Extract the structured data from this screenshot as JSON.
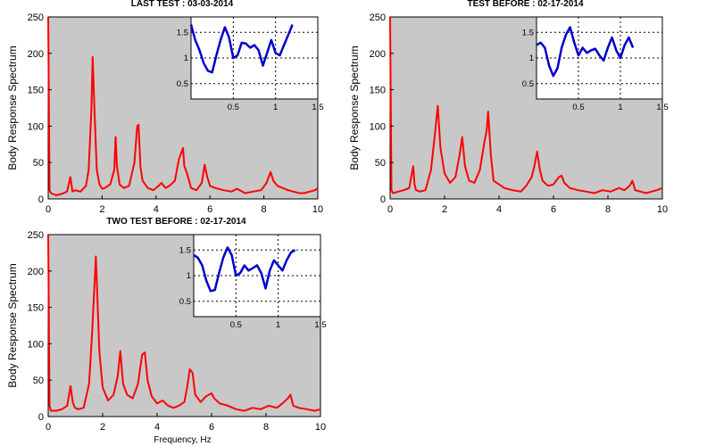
{
  "chart_data": [
    {
      "type": "line",
      "title": "LAST TEST : 03-03-2014",
      "ylabel": "Body Response Spectrum",
      "xlabel": "",
      "xlim": [
        0,
        10
      ],
      "ylim": [
        0,
        250
      ],
      "xticks": [
        0,
        2,
        4,
        6,
        8,
        10
      ],
      "yticks": [
        0,
        50,
        100,
        150,
        200,
        250
      ],
      "background": "#c8c8c8",
      "line_color": "#ff0000",
      "series": [
        {
          "x": [
            0,
            0.05,
            0.1,
            0.3,
            0.5,
            0.7,
            0.82,
            0.9,
            1.0,
            1.2,
            1.4,
            1.5,
            1.6,
            1.65,
            1.72,
            1.8,
            1.9,
            2.0,
            2.1,
            2.3,
            2.45,
            2.5,
            2.55,
            2.65,
            2.8,
            3.0,
            3.2,
            3.3,
            3.35,
            3.42,
            3.5,
            3.7,
            3.9,
            4.1,
            4.2,
            4.35,
            4.5,
            4.7,
            4.85,
            4.95,
            5.0,
            5.05,
            5.15,
            5.3,
            5.5,
            5.7,
            5.8,
            5.9,
            6.0,
            6.2,
            6.5,
            6.8,
            7.0,
            7.3,
            7.6,
            7.9,
            8.1,
            8.25,
            8.35,
            8.5,
            8.7,
            8.9,
            9.1,
            9.3,
            9.5,
            9.7,
            9.9,
            10.0
          ],
          "y": [
            250,
            12,
            8,
            5,
            7,
            10,
            30,
            10,
            12,
            10,
            18,
            40,
            120,
            195,
            120,
            40,
            20,
            14,
            15,
            20,
            40,
            85,
            45,
            20,
            15,
            18,
            50,
            100,
            102,
            45,
            25,
            15,
            12,
            18,
            22,
            15,
            18,
            25,
            55,
            65,
            70,
            45,
            35,
            15,
            12,
            22,
            47,
            30,
            18,
            15,
            12,
            10,
            14,
            8,
            10,
            12,
            22,
            37,
            25,
            18,
            15,
            12,
            10,
            8,
            8,
            10,
            12,
            15
          ]
        }
      ],
      "inset": {
        "xlim": [
          0,
          1.5
        ],
        "ylim": [
          0.2,
          1.8
        ],
        "xticks": [
          0.5,
          1,
          1.5
        ],
        "xtick_labels": [
          "0.5",
          "1",
          "1.5"
        ],
        "yticks": [
          0.5,
          1,
          1.5
        ],
        "ytick_labels": [
          "0.5",
          "1",
          "1.5"
        ],
        "line_color": "#0000cc",
        "x": [
          0,
          0.05,
          0.1,
          0.15,
          0.2,
          0.25,
          0.3,
          0.35,
          0.4,
          0.45,
          0.5,
          0.55,
          0.6,
          0.65,
          0.7,
          0.75,
          0.8,
          0.85,
          0.9,
          0.95,
          1.0,
          1.05,
          1.1,
          1.15,
          1.2
        ],
        "y": [
          1.65,
          1.35,
          1.15,
          0.9,
          0.75,
          0.72,
          1.05,
          1.35,
          1.6,
          1.4,
          1.0,
          1.05,
          1.3,
          1.28,
          1.2,
          1.25,
          1.15,
          0.85,
          1.1,
          1.35,
          1.1,
          1.05,
          1.25,
          1.45,
          1.65
        ]
      }
    },
    {
      "type": "line",
      "title": "TEST BEFORE : 02-17-2014",
      "ylabel": "Body Response Spectrum",
      "xlabel": "",
      "xlim": [
        0,
        10
      ],
      "ylim": [
        0,
        250
      ],
      "xticks": [
        0,
        2,
        4,
        6,
        8,
        10
      ],
      "yticks": [
        0,
        50,
        100,
        150,
        200,
        250
      ],
      "background": "#c8c8c8",
      "line_color": "#ff0000",
      "series": [
        {
          "x": [
            0,
            0.05,
            0.1,
            0.3,
            0.5,
            0.7,
            0.85,
            0.9,
            0.95,
            1.1,
            1.3,
            1.5,
            1.65,
            1.75,
            1.85,
            2.0,
            2.2,
            2.4,
            2.55,
            2.65,
            2.75,
            2.9,
            3.1,
            3.3,
            3.45,
            3.55,
            3.6,
            3.7,
            3.8,
            4.0,
            4.2,
            4.5,
            4.8,
            5.0,
            5.2,
            5.3,
            5.4,
            5.5,
            5.6,
            5.8,
            6.0,
            6.2,
            6.3,
            6.4,
            6.6,
            6.9,
            7.2,
            7.5,
            7.8,
            8.1,
            8.4,
            8.6,
            8.8,
            8.9,
            9.0,
            9.2,
            9.4,
            9.6,
            9.8,
            10.0
          ],
          "y": [
            250,
            12,
            8,
            10,
            12,
            15,
            45,
            20,
            12,
            10,
            12,
            40,
            90,
            128,
            70,
            35,
            22,
            30,
            60,
            85,
            45,
            25,
            22,
            40,
            75,
            95,
            120,
            60,
            25,
            20,
            15,
            12,
            10,
            18,
            30,
            45,
            65,
            40,
            25,
            18,
            20,
            30,
            32,
            22,
            15,
            12,
            10,
            8,
            12,
            10,
            15,
            12,
            18,
            25,
            12,
            10,
            8,
            10,
            12,
            15
          ]
        }
      ],
      "inset": {
        "xlim": [
          0,
          1.5
        ],
        "ylim": [
          0.2,
          1.8
        ],
        "xticks": [
          0.5,
          1,
          1.5
        ],
        "xtick_labels": [
          "0.5",
          "1",
          "1.5"
        ],
        "yticks": [
          0.5,
          1,
          1.5
        ],
        "ytick_labels": [
          "0.5",
          "1",
          "1.5"
        ],
        "line_color": "#0000cc",
        "x": [
          0,
          0.05,
          0.1,
          0.15,
          0.2,
          0.25,
          0.3,
          0.35,
          0.4,
          0.45,
          0.5,
          0.55,
          0.6,
          0.65,
          0.7,
          0.75,
          0.8,
          0.85,
          0.9,
          0.95,
          1.0,
          1.05,
          1.1,
          1.15
        ],
        "y": [
          1.25,
          1.3,
          1.2,
          0.85,
          0.65,
          0.8,
          1.2,
          1.45,
          1.6,
          1.3,
          1.05,
          1.2,
          1.1,
          1.15,
          1.18,
          1.05,
          0.95,
          1.2,
          1.4,
          1.15,
          1.0,
          1.25,
          1.4,
          1.2
        ]
      }
    },
    {
      "type": "line",
      "title": "TWO TEST BEFORE : 02-17-2014",
      "ylabel": "Body Response Spectrum",
      "xlabel": "Frequency, Hz",
      "xlim": [
        0,
        10
      ],
      "ylim": [
        0,
        250
      ],
      "xticks": [
        0,
        2,
        4,
        6,
        8,
        10
      ],
      "yticks": [
        0,
        50,
        100,
        150,
        200,
        250
      ],
      "background": "#c8c8c8",
      "line_color": "#ff0000",
      "series": [
        {
          "x": [
            0,
            0.05,
            0.1,
            0.3,
            0.5,
            0.7,
            0.82,
            0.9,
            0.98,
            1.1,
            1.3,
            1.5,
            1.62,
            1.75,
            1.88,
            2.0,
            2.2,
            2.4,
            2.55,
            2.65,
            2.75,
            2.9,
            3.1,
            3.3,
            3.45,
            3.55,
            3.65,
            3.8,
            4.0,
            4.2,
            4.4,
            4.6,
            4.8,
            5.0,
            5.1,
            5.2,
            5.3,
            5.4,
            5.6,
            5.8,
            6.0,
            6.1,
            6.3,
            6.6,
            6.9,
            7.2,
            7.5,
            7.8,
            8.1,
            8.4,
            8.6,
            8.8,
            8.9,
            9.0,
            9.2,
            9.5,
            9.8,
            10.0
          ],
          "y": [
            250,
            15,
            8,
            8,
            10,
            15,
            42,
            20,
            12,
            10,
            12,
            45,
            120,
            220,
            90,
            40,
            22,
            30,
            55,
            90,
            45,
            30,
            25,
            45,
            85,
            88,
            50,
            28,
            18,
            22,
            15,
            12,
            15,
            20,
            40,
            65,
            60,
            30,
            20,
            28,
            32,
            25,
            18,
            15,
            10,
            8,
            12,
            10,
            15,
            12,
            18,
            25,
            30,
            15,
            12,
            10,
            8,
            10
          ]
        }
      ],
      "inset": {
        "xlim": [
          0,
          1.5
        ],
        "ylim": [
          0.2,
          1.8
        ],
        "xticks": [
          0.5,
          1,
          1.5
        ],
        "xtick_labels": [
          "0.5",
          "1",
          "1.5"
        ],
        "yticks": [
          0.5,
          1,
          1.5
        ],
        "ytick_labels": [
          "0.5",
          "1",
          "1.5"
        ],
        "line_color": "#0000cc",
        "x": [
          0,
          0.05,
          0.1,
          0.15,
          0.2,
          0.25,
          0.3,
          0.35,
          0.4,
          0.45,
          0.5,
          0.55,
          0.6,
          0.65,
          0.7,
          0.75,
          0.8,
          0.85,
          0.9,
          0.95,
          1.0,
          1.05,
          1.1,
          1.15,
          1.2
        ],
        "y": [
          1.4,
          1.35,
          1.2,
          0.9,
          0.7,
          0.72,
          1.05,
          1.35,
          1.55,
          1.4,
          1.0,
          1.05,
          1.2,
          1.1,
          1.15,
          1.2,
          1.05,
          0.75,
          1.1,
          1.3,
          1.2,
          1.1,
          1.3,
          1.45,
          1.5
        ]
      }
    }
  ]
}
